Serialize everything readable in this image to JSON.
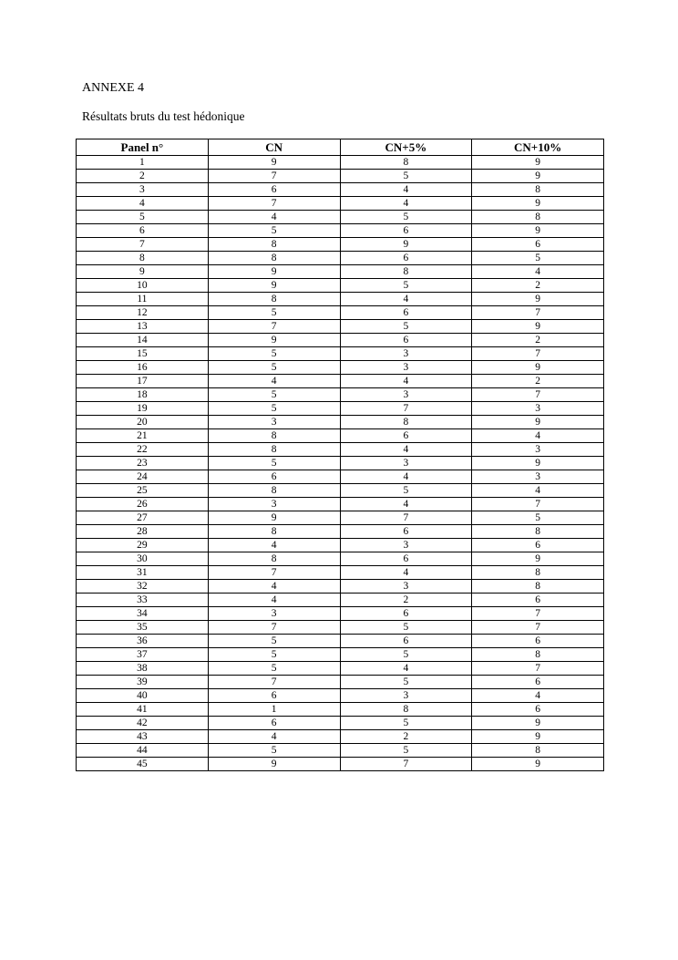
{
  "page": {
    "title": "ANNEXE 4",
    "subtitle": "Résultats bruts du test hédonique"
  },
  "table": {
    "headers": [
      "Panel n°",
      "CN",
      "CN+5%",
      "CN+10%"
    ],
    "rows": [
      [
        "1",
        "9",
        "8",
        "9"
      ],
      [
        "2",
        "7",
        "5",
        "9"
      ],
      [
        "3",
        "6",
        "4",
        "8"
      ],
      [
        "4",
        "7",
        "4",
        "9"
      ],
      [
        "5",
        "4",
        "5",
        "8"
      ],
      [
        "6",
        "5",
        "6",
        "9"
      ],
      [
        "7",
        "8",
        "9",
        "6"
      ],
      [
        "8",
        "8",
        "6",
        "5"
      ],
      [
        "9",
        "9",
        "8",
        "4"
      ],
      [
        "10",
        "9",
        "5",
        "2"
      ],
      [
        "11",
        "8",
        "4",
        "9"
      ],
      [
        "12",
        "5",
        "6",
        "7"
      ],
      [
        "13",
        "7",
        "5",
        "9"
      ],
      [
        "14",
        "9",
        "6",
        "2"
      ],
      [
        "15",
        "5",
        "3",
        "7"
      ],
      [
        "16",
        "5",
        "3",
        "9"
      ],
      [
        "17",
        "4",
        "4",
        "2"
      ],
      [
        "18",
        "5",
        "3",
        "7"
      ],
      [
        "19",
        "5",
        "7",
        "3"
      ],
      [
        "20",
        "3",
        "8",
        "9"
      ],
      [
        "21",
        "8",
        "6",
        "4"
      ],
      [
        "22",
        "8",
        "4",
        "3"
      ],
      [
        "23",
        "5",
        "3",
        "9"
      ],
      [
        "24",
        "6",
        "4",
        "3"
      ],
      [
        "25",
        "8",
        "5",
        "4"
      ],
      [
        "26",
        "3",
        "4",
        "7"
      ],
      [
        "27",
        "9",
        "7",
        "5"
      ],
      [
        "28",
        "8",
        "6",
        "8"
      ],
      [
        "29",
        "4",
        "3",
        "6"
      ],
      [
        "30",
        "8",
        "6",
        "9"
      ],
      [
        "31",
        "7",
        "4",
        "8"
      ],
      [
        "32",
        "4",
        "3",
        "8"
      ],
      [
        "33",
        "4",
        "2",
        "6"
      ],
      [
        "34",
        "3",
        "6",
        "7"
      ],
      [
        "35",
        "7",
        "5",
        "7"
      ],
      [
        "36",
        "5",
        "6",
        "6"
      ],
      [
        "37",
        "5",
        "5",
        "8"
      ],
      [
        "38",
        "5",
        "4",
        "7"
      ],
      [
        "39",
        "7",
        "5",
        "6"
      ],
      [
        "40",
        "6",
        "3",
        "4"
      ],
      [
        "41",
        "1",
        "8",
        "6"
      ],
      [
        "42",
        "6",
        "5",
        "9"
      ],
      [
        "43",
        "4",
        "2",
        "9"
      ],
      [
        "44",
        "5",
        "5",
        "8"
      ],
      [
        "45",
        "9",
        "7",
        "9"
      ]
    ]
  }
}
